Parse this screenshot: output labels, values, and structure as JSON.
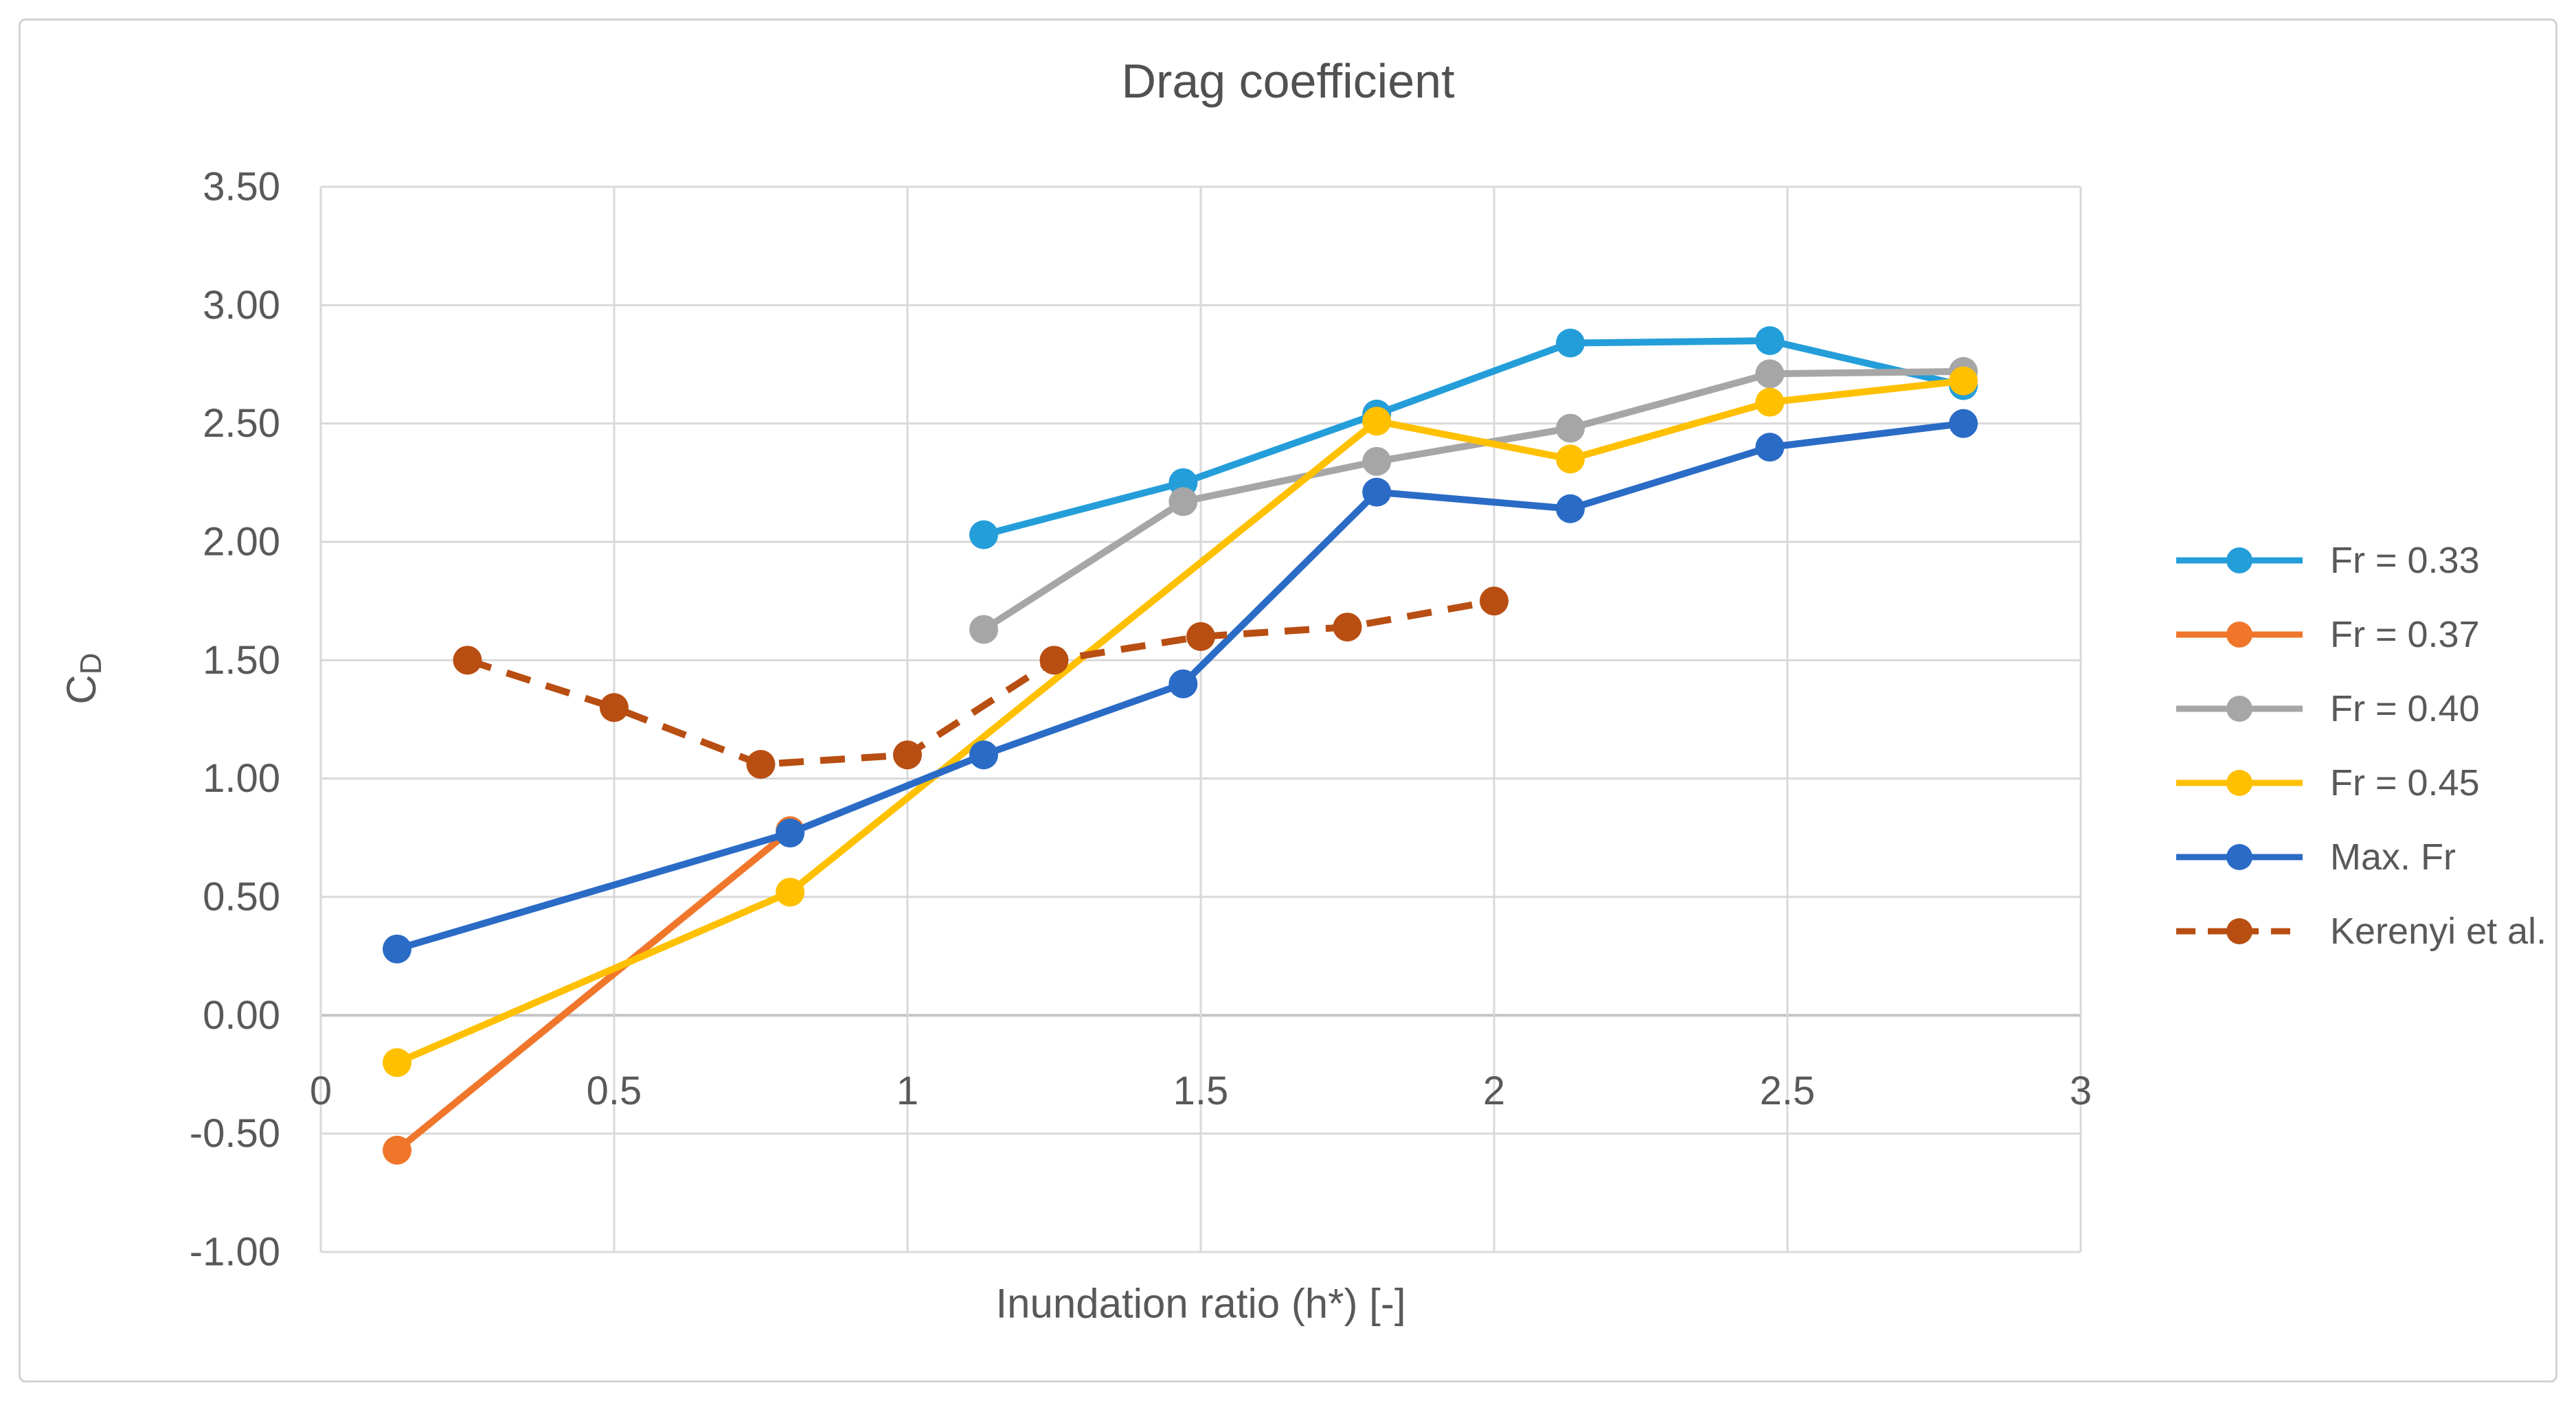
{
  "figure": {
    "title": "Drag coefficient",
    "x_axis_title": "Inundation ratio (h*) [-]",
    "y_axis_title": {
      "base": "C",
      "sub": "D"
    }
  },
  "chart_data": {
    "type": "line",
    "title": "Drag coefficient",
    "xlabel": "Inundation ratio (h*) [-]",
    "ylabel": "C_D",
    "xlim": [
      0,
      3
    ],
    "ylim": [
      -1.0,
      3.5
    ],
    "grid": true,
    "legend_position": "right",
    "x_ticks": [
      {
        "value": 0,
        "label": "0"
      },
      {
        "value": 0.5,
        "label": "0.5"
      },
      {
        "value": 1,
        "label": "1"
      },
      {
        "value": 1.5,
        "label": "1.5"
      },
      {
        "value": 2,
        "label": "2"
      },
      {
        "value": 2.5,
        "label": "2.5"
      },
      {
        "value": 3,
        "label": "3"
      }
    ],
    "y_ticks": [
      {
        "value": 3.5,
        "label": "3.50"
      },
      {
        "value": 3.0,
        "label": "3.00"
      },
      {
        "value": 2.5,
        "label": "2.50"
      },
      {
        "value": 2.0,
        "label": "2.00"
      },
      {
        "value": 1.5,
        "label": "1.50"
      },
      {
        "value": 1.0,
        "label": "1.00"
      },
      {
        "value": 0.5,
        "label": "0.50"
      },
      {
        "value": 0.0,
        "label": "0.00"
      },
      {
        "value": -0.5,
        "label": "-0.50"
      },
      {
        "value": -1.0,
        "label": "-1.00"
      }
    ],
    "series": [
      {
        "name": "Fr = 0.33",
        "color": "#249ED9",
        "dash": "solid",
        "x": [
          1.13,
          1.47,
          1.8,
          2.13,
          2.47,
          2.8
        ],
        "y": [
          2.03,
          2.25,
          2.54,
          2.84,
          2.85,
          2.66
        ]
      },
      {
        "name": "Fr = 0.37",
        "color": "#F0762B",
        "dash": "solid",
        "x": [
          0.13,
          0.8
        ],
        "y": [
          -0.57,
          0.78
        ]
      },
      {
        "name": "Fr = 0.40",
        "color": "#A6A6A6",
        "dash": "solid",
        "x": [
          1.13,
          1.47,
          1.8,
          2.13,
          2.47,
          2.8
        ],
        "y": [
          1.63,
          2.17,
          2.34,
          2.48,
          2.71,
          2.72
        ]
      },
      {
        "name": "Fr = 0.45",
        "color": "#FFC000",
        "dash": "solid",
        "x": [
          0.13,
          0.8,
          1.8,
          2.13,
          2.47,
          2.8
        ],
        "y": [
          -0.2,
          0.52,
          2.51,
          2.35,
          2.59,
          2.68
        ]
      },
      {
        "name": "Max. Fr",
        "color": "#2A6BC6",
        "dash": "solid",
        "x": [
          0.13,
          0.8,
          1.13,
          1.47,
          1.8,
          2.13,
          2.47,
          2.8
        ],
        "y": [
          0.28,
          0.77,
          1.1,
          1.4,
          2.21,
          2.14,
          2.4,
          2.5
        ]
      },
      {
        "name": "Kerenyi et al.",
        "color": "#B84E12",
        "dash": "dashed",
        "x": [
          0.25,
          0.5,
          0.75,
          1.0,
          1.25,
          1.5,
          1.75,
          2.0
        ],
        "y": [
          1.5,
          1.3,
          1.06,
          1.1,
          1.5,
          1.6,
          1.64,
          1.75
        ]
      }
    ]
  },
  "colors": {
    "text": "#595959",
    "title_text": "#515151",
    "gridline": "#D9D9D9",
    "zero_axis": "#C3C3C3",
    "figure_border": "#D2D2D2",
    "background": "#FFFFFF"
  }
}
